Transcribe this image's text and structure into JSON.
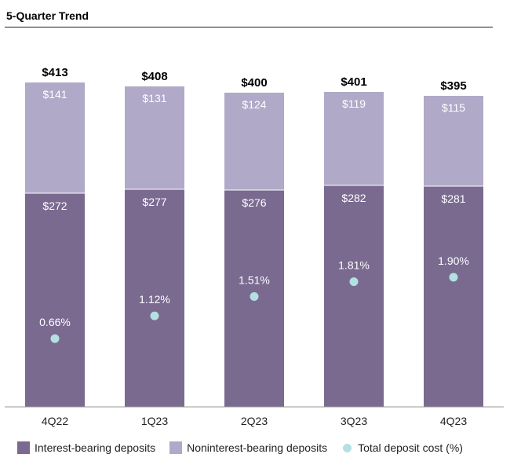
{
  "title": "5-Quarter Trend",
  "colors": {
    "interest": "#7a6a90",
    "noninterest": "#b0a9c8",
    "cost_dot": "#b3e0e0",
    "axis": "#999999"
  },
  "chart_data": {
    "type": "bar",
    "stacked": true,
    "title": "5-Quarter Trend",
    "categories": [
      "4Q22",
      "1Q23",
      "2Q23",
      "3Q23",
      "4Q23"
    ],
    "series": [
      {
        "name": "Interest-bearing deposits",
        "values": [
          272,
          277,
          276,
          282,
          281
        ],
        "labels": [
          "$272",
          "$277",
          "$276",
          "$282",
          "$281"
        ]
      },
      {
        "name": "Noninterest-bearing deposits",
        "values": [
          141,
          131,
          124,
          119,
          115
        ],
        "labels": [
          "$141",
          "$131",
          "$124",
          "$119",
          "$115"
        ]
      }
    ],
    "totals": [
      413,
      408,
      400,
      401,
      395
    ],
    "total_labels": [
      "$413",
      "$408",
      "$400",
      "$401",
      "$395"
    ],
    "cost": {
      "name": "Total deposit cost (%)",
      "values": [
        0.66,
        1.12,
        1.51,
        1.81,
        1.9
      ],
      "labels": [
        "0.66%",
        "1.12%",
        "1.51%",
        "1.81%",
        "1.90%"
      ]
    },
    "xlabel": "",
    "ylabel": "",
    "ylim": [
      0,
      413
    ],
    "legend": "bottom"
  },
  "legend": {
    "interest": "Interest-bearing deposits",
    "noninterest": "Noninterest-bearing deposits",
    "cost": "Total deposit cost (%)"
  }
}
